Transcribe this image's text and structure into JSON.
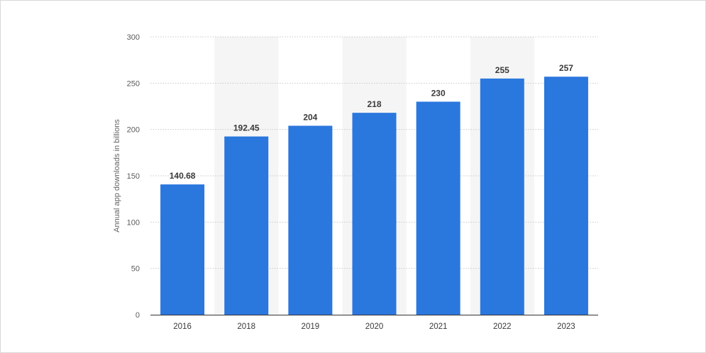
{
  "chart_data": {
    "type": "bar",
    "categories": [
      "2016",
      "2018",
      "2019",
      "2020",
      "2021",
      "2022",
      "2023"
    ],
    "values": [
      140.68,
      192.45,
      204,
      218,
      230,
      255,
      257
    ],
    "data_labels": [
      "140.68",
      "192.45",
      "204",
      "218",
      "230",
      "255",
      "257"
    ],
    "yticks": [
      "0",
      "50",
      "100",
      "150",
      "200",
      "250",
      "300"
    ],
    "ylim": [
      0,
      300
    ],
    "ylabel": "Annual app downloads in billions",
    "xlabel": "",
    "title": "",
    "grid": true,
    "colors": {
      "bar": "#2a77de",
      "band": "#f5f5f5",
      "grid": "#c8c8c8",
      "axis": "#333333"
    }
  }
}
